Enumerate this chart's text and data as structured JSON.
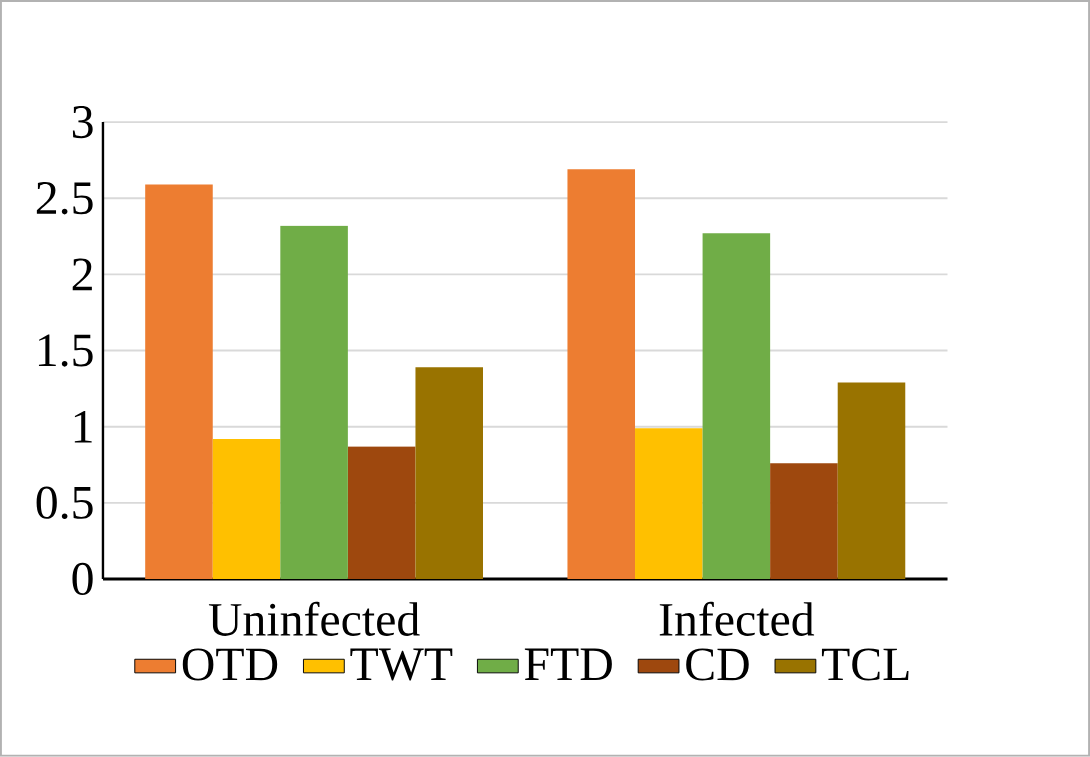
{
  "chart_data": {
    "type": "bar",
    "categories": [
      "Uninfected",
      "Infected"
    ],
    "series": [
      {
        "name": "OTD",
        "color": "#ed7d31",
        "values": [
          2.59,
          2.69
        ]
      },
      {
        "name": "TWT",
        "color": "#ffc000",
        "values": [
          0.92,
          0.99
        ]
      },
      {
        "name": "FTD",
        "color": "#70ad47",
        "values": [
          2.32,
          2.27
        ]
      },
      {
        "name": "CD",
        "color": "#9e480e",
        "values": [
          0.87,
          0.76
        ]
      },
      {
        "name": "TCL",
        "color": "#997300",
        "values": [
          1.39,
          1.29
        ]
      }
    ],
    "ylim": [
      0,
      3
    ],
    "yticks": [
      0,
      0.5,
      1,
      1.5,
      2,
      2.5,
      3
    ],
    "grid": "y",
    "legend": "bottom"
  }
}
